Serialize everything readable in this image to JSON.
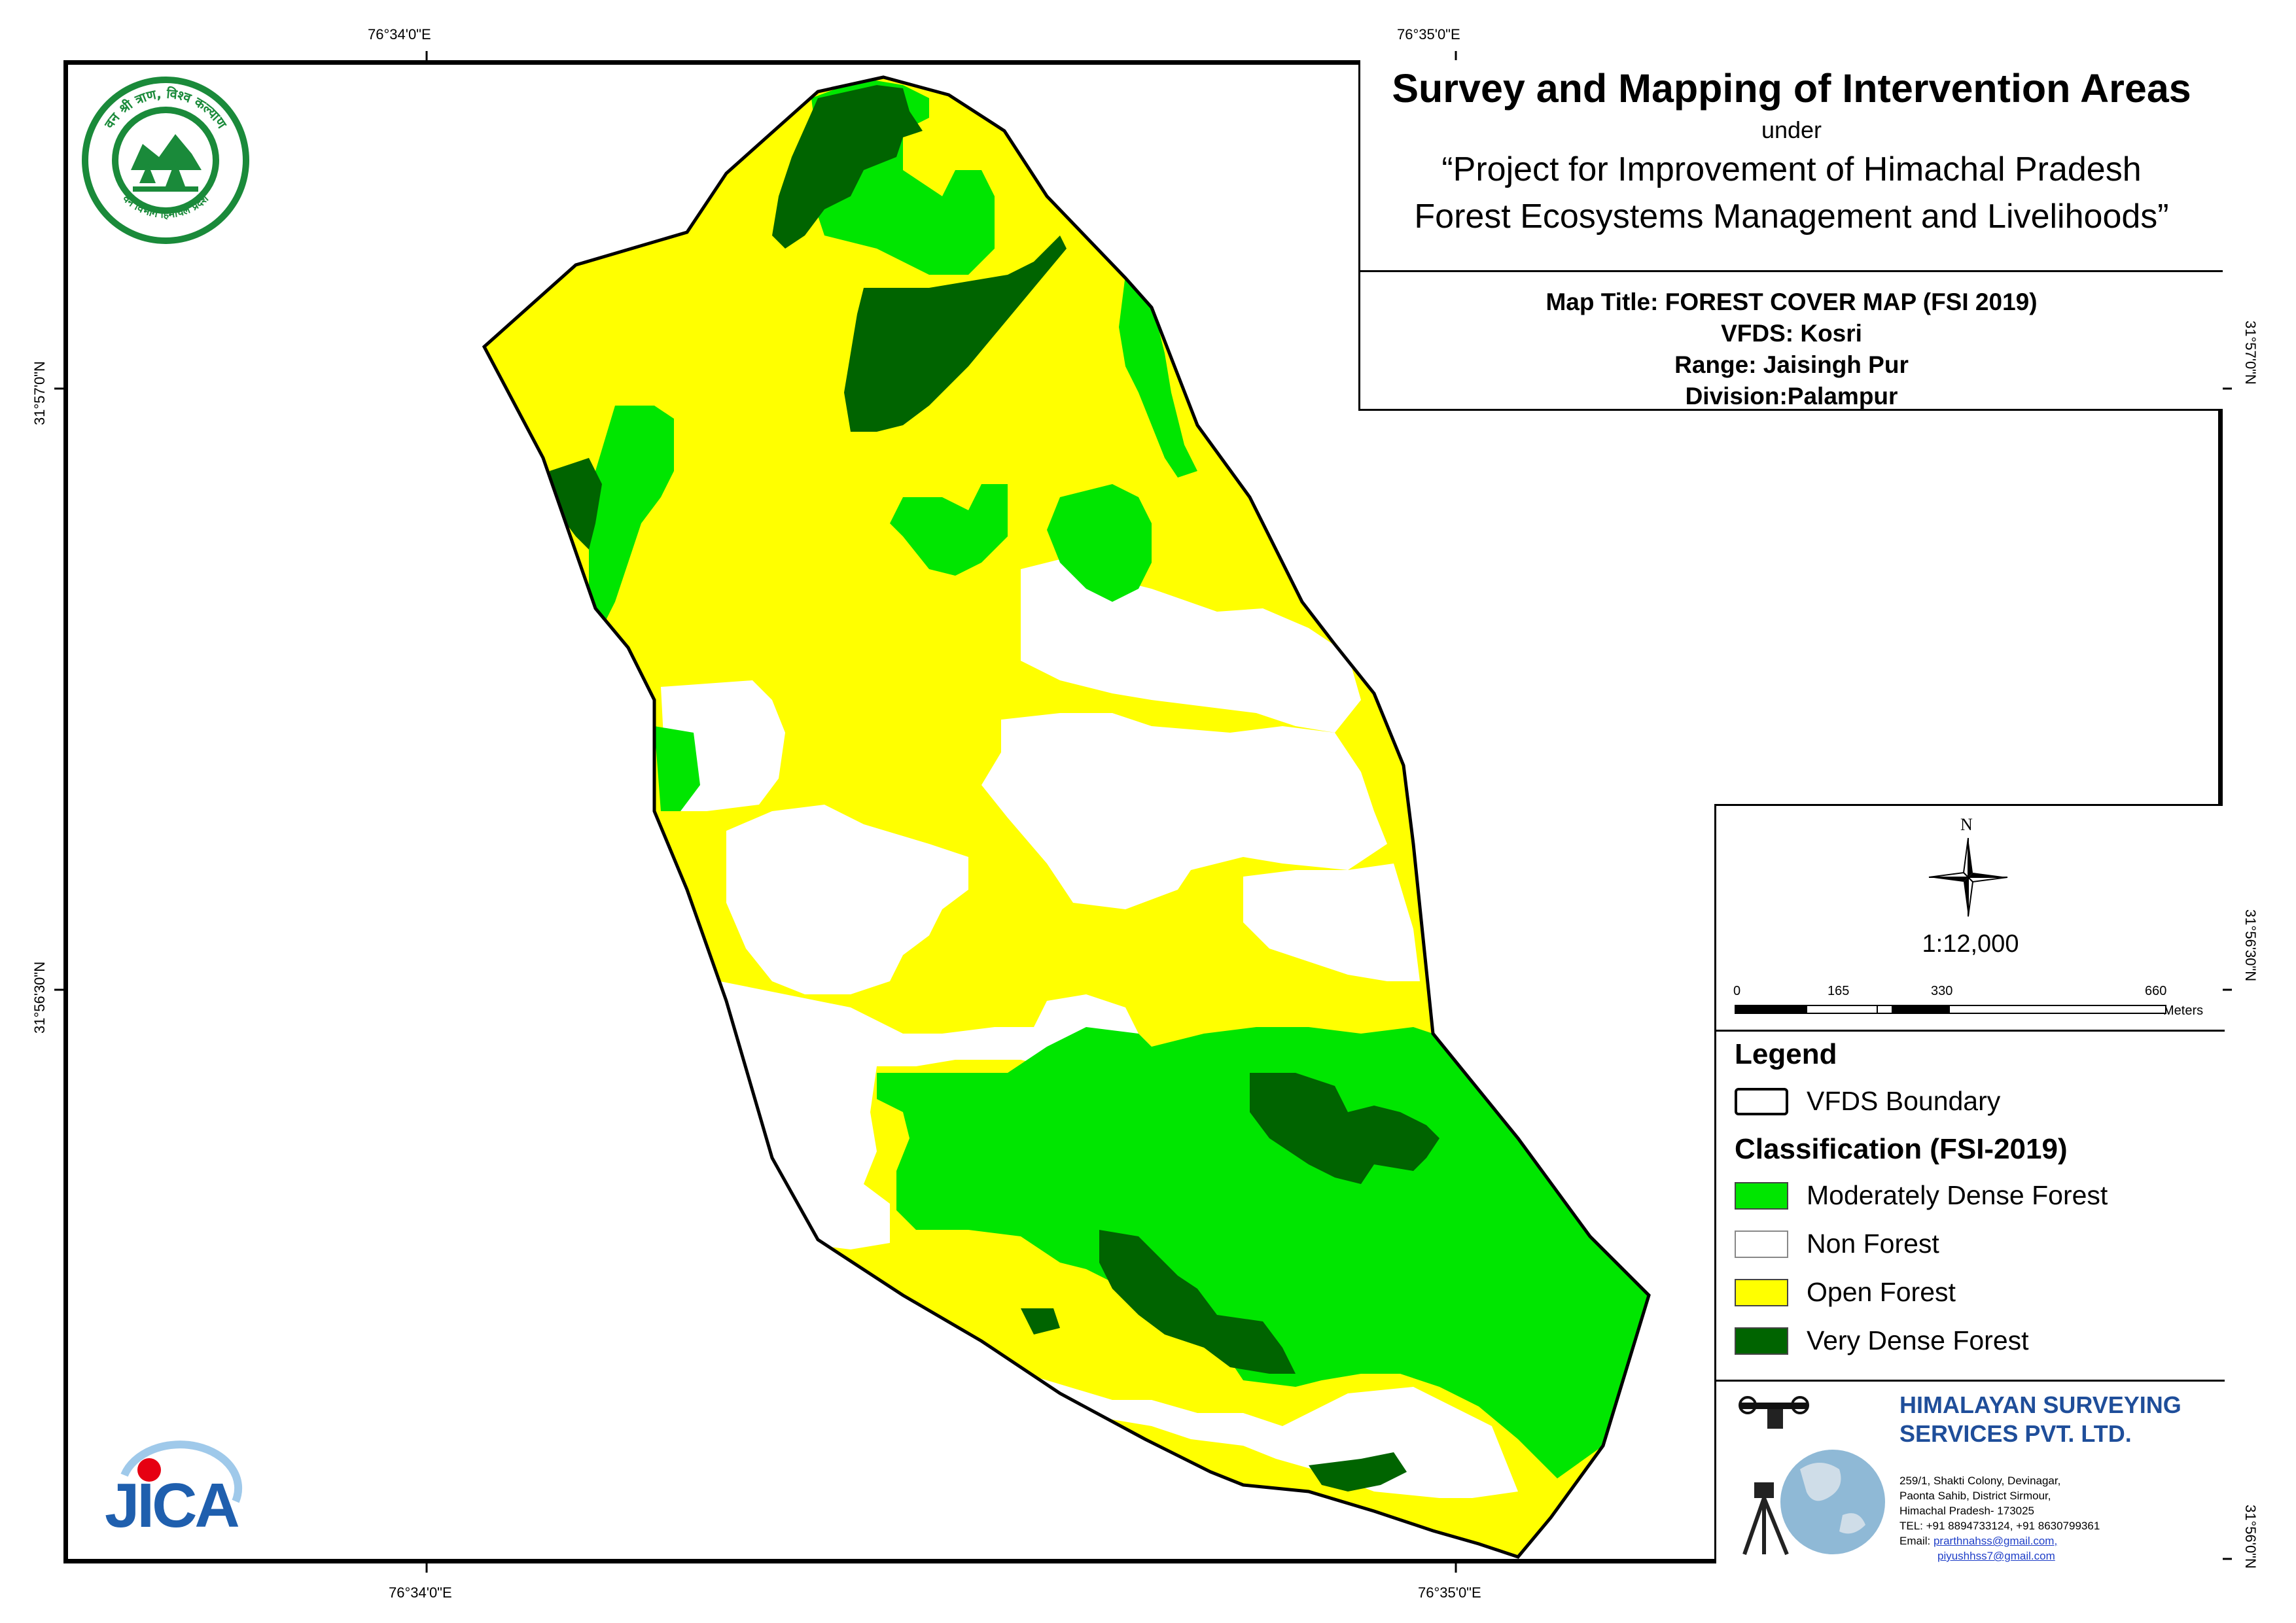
{
  "title_block": {
    "main_title": "Survey and Mapping of Intervention Areas",
    "connector": "under",
    "project_line1": "“Project for Improvement of Himachal Pradesh",
    "project_line2": "Forest Ecosystems Management and Livelihoods”"
  },
  "map_info": {
    "map_title": "Map Title: FOREST COVER MAP (FSI 2019)",
    "vfds": "VFDS: Kosri",
    "range": "Range: Jaisingh Pur",
    "division": "Division:Palampur"
  },
  "graticule": {
    "top_left": "76°34'0\"E",
    "top_right": "76°35'0\"E",
    "bottom_left": "76°34'0\"E",
    "bottom_right": "76°35'0\"E",
    "left_upper": "31°57'0\"N",
    "left_lower": "31°56'30\"N",
    "right_upper": "31°57'0\"N",
    "right_middle": "31°56'30\"N",
    "right_lower": "31°56'0\"N"
  },
  "north_arrow_label": "N",
  "scale": {
    "ratio": "1:12,000",
    "ticks": [
      "0",
      "165",
      "330",
      "660"
    ],
    "unit": "Meters"
  },
  "legend": {
    "title": "Legend",
    "boundary_label": "VFDS Boundary",
    "classification_title": "Classification (FSI-2019)",
    "classes": [
      {
        "label": "Moderately Dense Forest",
        "color": "#00e600"
      },
      {
        "label": "Non Forest",
        "color": "#ffffff"
      },
      {
        "label": "Open Forest",
        "color": "#ffff00"
      },
      {
        "label": "Very Dense Forest",
        "color": "#006400"
      }
    ]
  },
  "logos": {
    "forest_dept_arc_top": "वन श्री त्राण, विश्व कल्याण",
    "forest_dept_arc_bottom": "वन विभाग हिमाचल प्रदेश",
    "jica": "JICA"
  },
  "company": {
    "name_line1": "HIMALAYAN SURVEYING",
    "name_line2": "SERVICES PVT. LTD.",
    "address1": "259/1, Shakti Colony, Devinagar,",
    "address2": "Paonta Sahib, District Sirmour,",
    "address3": "Himachal Pradesh- 173025",
    "tel": "TEL: +91 8894733124, +91 8630799361",
    "email_label": "Email:",
    "email1": "prarthnahss@gmail.com,",
    "email2": "piyushhss7@gmail.com"
  }
}
